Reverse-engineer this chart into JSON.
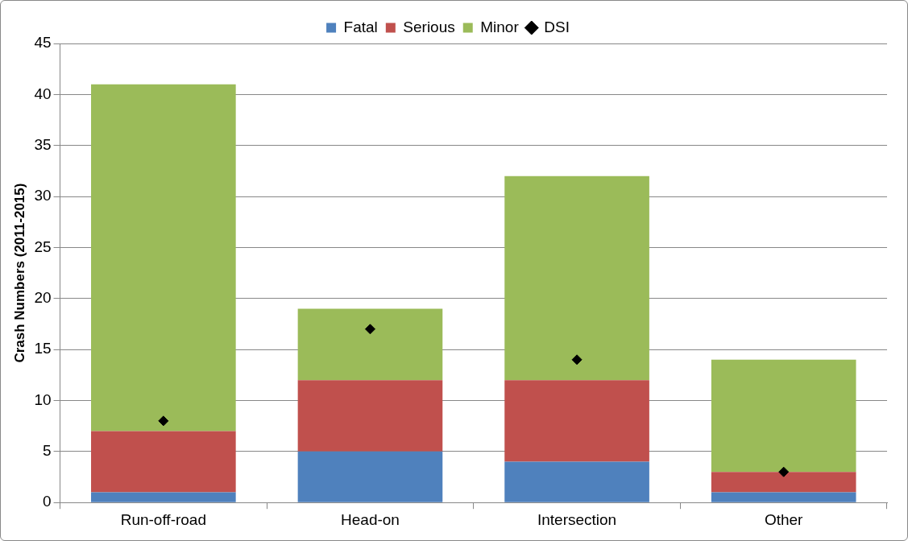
{
  "chart_data": {
    "type": "bar",
    "stacked": true,
    "ylabel": "Crash Numbers (2011-2015)",
    "categories": [
      "Run-off-road",
      "Head-on",
      "Intersection",
      "Other"
    ],
    "series": [
      {
        "name": "Fatal",
        "color": "#4f81bd",
        "values": [
          1,
          5,
          4,
          1
        ]
      },
      {
        "name": "Serious",
        "color": "#c0504d",
        "values": [
          6,
          7,
          8,
          2
        ]
      },
      {
        "name": "Minor",
        "color": "#9bbb59",
        "values": [
          34,
          7,
          20,
          11
        ]
      },
      {
        "name": "DSI",
        "type": "scatter",
        "color": "#000000",
        "marker": "diamond",
        "x": [
          "Run-off-road",
          "Head-on",
          "Intersection",
          "Other"
        ],
        "values": [
          8,
          17,
          14,
          3
        ]
      }
    ],
    "ylim": [
      0,
      45
    ],
    "yticks": [
      0,
      5,
      10,
      15,
      20,
      25,
      30,
      35,
      40,
      45
    ],
    "grid": "y",
    "legend": "top"
  }
}
